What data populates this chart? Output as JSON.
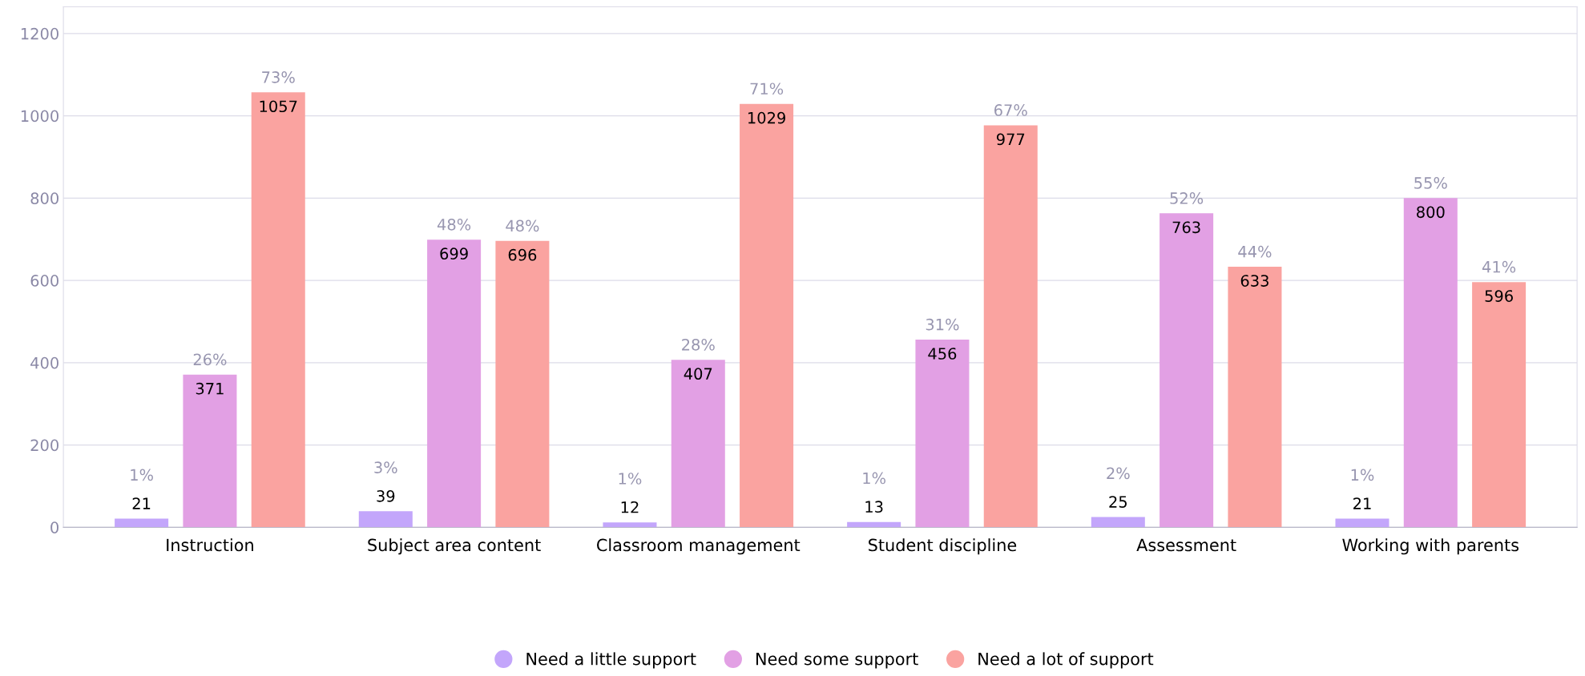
{
  "chart_data": {
    "type": "bar",
    "categories": [
      "Instruction",
      "Subject area content",
      "Classroom management",
      "Student discipline",
      "Assessment",
      "Working with parents"
    ],
    "series": [
      {
        "name": "Need a little support",
        "color": "#c3a6fb",
        "values": [
          21,
          39,
          12,
          13,
          25,
          21
        ]
      },
      {
        "name": "Need some support",
        "color": "#e2a0e4",
        "values": [
          371,
          699,
          407,
          456,
          763,
          800
        ]
      },
      {
        "name": "Need a lot of support",
        "color": "#faa3a0",
        "values": [
          1057,
          696,
          1029,
          977,
          633,
          596
        ]
      }
    ],
    "annotations": [
      "1%",
      "26%",
      "73%",
      "3%",
      "48%",
      "48%",
      "1%",
      "28%",
      "71%",
      "1%",
      "31%",
      "67%",
      "2%",
      "52%",
      "44%",
      "1%",
      "55%",
      "41%"
    ],
    "ylim": [
      0,
      1265
    ],
    "yticks": [
      0,
      200,
      400,
      600,
      800,
      1000,
      1200
    ],
    "grid": "y",
    "legend": "bottom",
    "data_labels": true
  }
}
